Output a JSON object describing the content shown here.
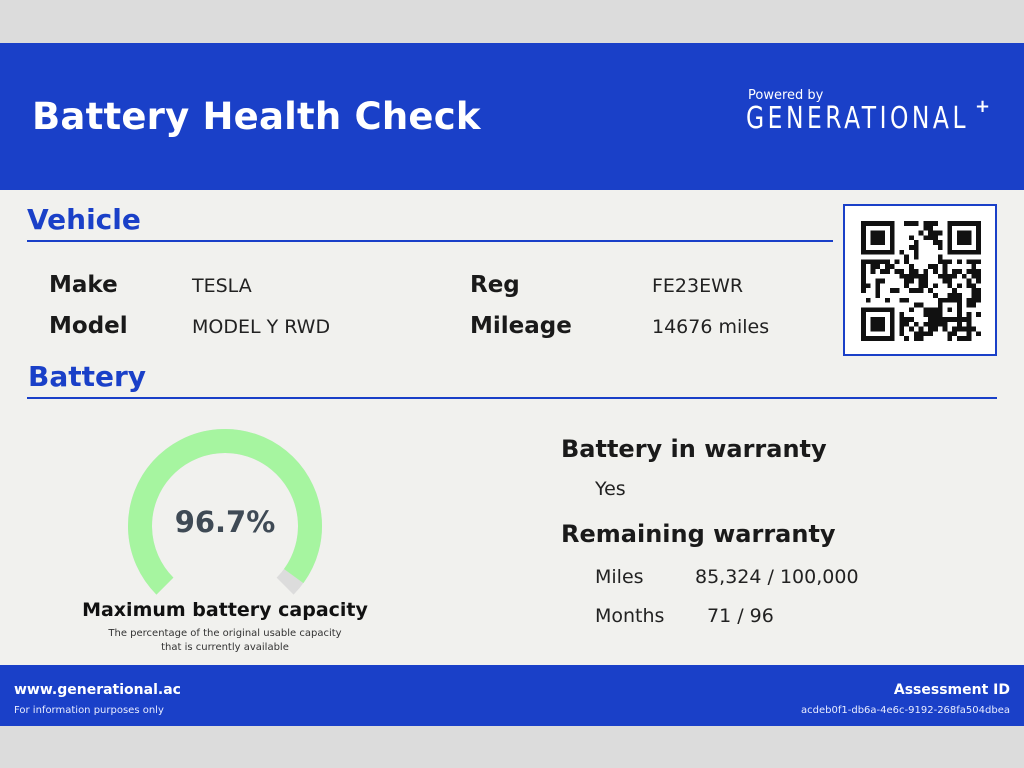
{
  "header": {
    "title": "Battery Health Check",
    "powered_by": "Powered by",
    "brand": "GENERATIONAL",
    "brand_mark": "+"
  },
  "vehicle": {
    "section_title": "Vehicle",
    "make_label": "Make",
    "make_value": "TESLA",
    "model_label": "Model",
    "model_value": "MODEL Y RWD",
    "reg_label": "Reg",
    "reg_value": "FE23EWR",
    "mileage_label": "Mileage",
    "mileage_value": "14676 miles"
  },
  "battery": {
    "section_title": "Battery",
    "capacity_value": "96.7%",
    "capacity_fraction": 0.967,
    "capacity_title": "Maximum battery capacity",
    "capacity_desc_line1": "The percentage of the original usable capacity",
    "capacity_desc_line2": "that is currently available",
    "in_warranty_label": "Battery in warranty",
    "in_warranty_value": "Yes",
    "remaining_label": "Remaining warranty",
    "miles_label": "Miles",
    "miles_value": "85,324 / 100,000",
    "months_label": "Months",
    "months_value": "71 / 96"
  },
  "footer": {
    "url": "www.generational.ac",
    "note": "For information purposes only",
    "assessment_label": "Assessment ID",
    "assessment_id": "acdeb0f1-db6a-4e6c-9192-268fa504dbea"
  },
  "colors": {
    "brand_blue": "#1a40c8",
    "gauge_fill": "#a6f5a0",
    "gauge_track": "#dcdcdc"
  },
  "icons": {
    "qr": "qr-code-icon"
  }
}
